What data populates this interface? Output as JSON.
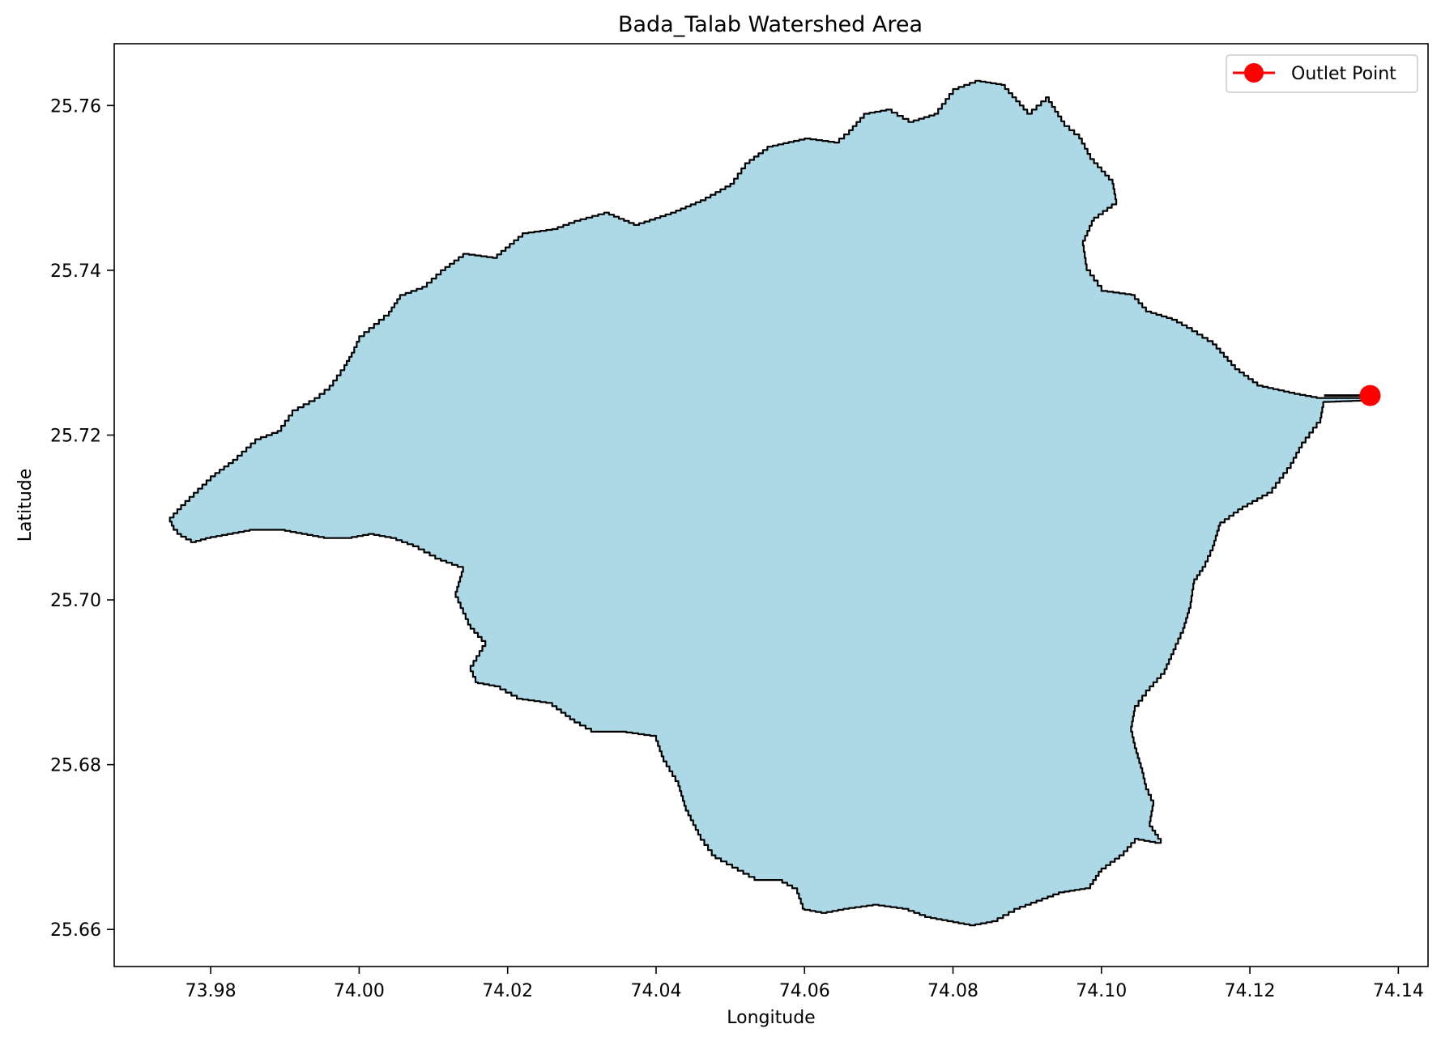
{
  "chart_data": {
    "type": "map",
    "title": "Bada_Talab Watershed Area",
    "xlabel": "Longitude",
    "ylabel": "Latitude",
    "xlim": [
      73.967,
      74.144
    ],
    "ylim": [
      25.6555,
      25.7675
    ],
    "x_ticks": [
      73.98,
      74.0,
      74.02,
      74.04,
      74.06,
      74.08,
      74.1,
      74.12,
      74.14
    ],
    "x_tick_labels": [
      "73.98",
      "74.00",
      "74.02",
      "74.04",
      "74.06",
      "74.08",
      "74.10",
      "74.12",
      "74.14"
    ],
    "y_ticks": [
      25.66,
      25.68,
      25.7,
      25.72,
      25.74,
      25.76
    ],
    "y_tick_labels": [
      "25.66",
      "25.68",
      "25.70",
      "25.72",
      "25.74",
      "25.76"
    ],
    "grid": false,
    "legend": {
      "position": "top-right",
      "entries": [
        {
          "label": "Outlet Point",
          "color": "#ff0000",
          "marker": "circle"
        }
      ]
    },
    "watershed": {
      "fill": "#add8e6",
      "edge": "#000000",
      "boundary": [
        [
          73.9745,
          25.71
        ],
        [
          73.976,
          25.7115
        ],
        [
          73.98,
          25.715
        ],
        [
          73.983,
          25.717
        ],
        [
          73.986,
          25.7195
        ],
        [
          73.989,
          25.7205
        ],
        [
          73.991,
          25.723
        ],
        [
          73.994,
          25.7245
        ],
        [
          73.996,
          25.726
        ],
        [
          73.998,
          25.7285
        ],
        [
          73.999,
          25.73
        ],
        [
          74.0,
          25.732
        ],
        [
          74.002,
          25.7335
        ],
        [
          74.004,
          25.735
        ],
        [
          74.0055,
          25.737
        ],
        [
          74.0085,
          25.738
        ],
        [
          74.011,
          25.74
        ],
        [
          74.014,
          25.742
        ],
        [
          74.018,
          25.7415
        ],
        [
          74.022,
          25.7445
        ],
        [
          74.026,
          25.745
        ],
        [
          74.029,
          25.746
        ],
        [
          74.033,
          25.747
        ],
        [
          74.037,
          25.7455
        ],
        [
          74.042,
          25.747
        ],
        [
          74.046,
          25.7485
        ],
        [
          74.05,
          25.7505
        ],
        [
          74.052,
          25.753
        ],
        [
          74.055,
          25.755
        ],
        [
          74.06,
          25.756
        ],
        [
          74.064,
          25.7555
        ],
        [
          74.066,
          25.757
        ],
        [
          74.068,
          25.759
        ],
        [
          74.071,
          25.7595
        ],
        [
          74.074,
          25.758
        ],
        [
          74.0775,
          25.759
        ],
        [
          74.08,
          25.762
        ],
        [
          74.083,
          25.763
        ],
        [
          74.0865,
          25.7625
        ],
        [
          74.09,
          25.759
        ],
        [
          74.0925,
          25.761
        ],
        [
          74.095,
          25.7575
        ],
        [
          74.097,
          25.756
        ],
        [
          74.0985,
          25.7535
        ],
        [
          74.1015,
          25.7505
        ],
        [
          74.102,
          25.748
        ],
        [
          74.099,
          25.746
        ],
        [
          74.0975,
          25.743
        ],
        [
          74.098,
          25.74
        ],
        [
          74.1,
          25.7375
        ],
        [
          74.104,
          25.737
        ],
        [
          74.106,
          25.735
        ],
        [
          74.1095,
          25.734
        ],
        [
          74.1115,
          25.733
        ],
        [
          74.115,
          25.731
        ],
        [
          74.118,
          25.728
        ],
        [
          74.121,
          25.726
        ],
        [
          74.126,
          25.725
        ],
        [
          74.129,
          25.7245
        ],
        [
          74.136,
          25.7245
        ],
        [
          74.136,
          25.7242
        ],
        [
          74.13,
          25.724
        ],
        [
          74.1295,
          25.7215
        ],
        [
          74.127,
          25.7185
        ],
        [
          74.1255,
          25.716
        ],
        [
          74.123,
          25.713
        ],
        [
          74.119,
          25.711
        ],
        [
          74.116,
          25.709
        ],
        [
          74.115,
          25.706
        ],
        [
          74.114,
          25.704
        ],
        [
          74.1125,
          25.702
        ],
        [
          74.112,
          25.699
        ],
        [
          74.111,
          25.696
        ],
        [
          74.11,
          25.694
        ],
        [
          74.1085,
          25.691
        ],
        [
          74.1065,
          25.689
        ],
        [
          74.1045,
          25.6865
        ],
        [
          74.104,
          25.684
        ],
        [
          74.1045,
          25.682
        ],
        [
          74.1055,
          25.679
        ],
        [
          74.106,
          25.677
        ],
        [
          74.107,
          25.675
        ],
        [
          74.1065,
          25.6725
        ],
        [
          74.108,
          25.6705
        ],
        [
          74.105,
          25.671
        ],
        [
          74.103,
          25.669
        ],
        [
          74.1,
          25.667
        ],
        [
          74.0985,
          25.665
        ],
        [
          74.095,
          25.6645
        ],
        [
          74.092,
          25.6635
        ],
        [
          74.089,
          25.6625
        ],
        [
          74.086,
          25.661
        ],
        [
          74.083,
          25.6605
        ],
        [
          74.08,
          25.661
        ],
        [
          74.077,
          25.6615
        ],
        [
          74.074,
          25.6625
        ],
        [
          74.07,
          25.663
        ],
        [
          74.066,
          25.6625
        ],
        [
          74.063,
          25.662
        ],
        [
          74.06,
          25.6625
        ],
        [
          74.059,
          25.665
        ],
        [
          74.057,
          25.666
        ],
        [
          74.054,
          25.666
        ],
        [
          74.051,
          25.6675
        ],
        [
          74.048,
          25.669
        ],
        [
          74.046,
          25.6715
        ],
        [
          74.044,
          25.675
        ],
        [
          74.043,
          25.678
        ],
        [
          74.041,
          25.681
        ],
        [
          74.04,
          25.6835
        ],
        [
          74.036,
          25.684
        ],
        [
          74.032,
          25.684
        ],
        [
          74.029,
          25.6855
        ],
        [
          74.026,
          25.6875
        ],
        [
          74.022,
          25.688
        ],
        [
          74.019,
          25.6895
        ],
        [
          74.016,
          25.69
        ],
        [
          74.015,
          25.692
        ],
        [
          74.017,
          25.695
        ],
        [
          74.015,
          25.697
        ],
        [
          74.014,
          25.699
        ],
        [
          74.013,
          25.701
        ],
        [
          74.014,
          25.704
        ],
        [
          74.011,
          25.705
        ],
        [
          74.008,
          25.7065
        ],
        [
          74.005,
          25.7075
        ],
        [
          74.002,
          25.708
        ],
        [
          73.999,
          25.7075
        ],
        [
          73.996,
          25.7075
        ],
        [
          73.993,
          25.708
        ],
        [
          73.99,
          25.7085
        ],
        [
          73.986,
          25.7085
        ],
        [
          73.983,
          25.708
        ],
        [
          73.98,
          25.7075
        ],
        [
          73.978,
          25.707
        ],
        [
          73.976,
          25.708
        ],
        [
          73.975,
          25.709
        ]
      ]
    },
    "outlet_point": {
      "label": "Outlet Point",
      "lon": 74.1362,
      "lat": 25.7248,
      "color": "#ff0000"
    }
  }
}
